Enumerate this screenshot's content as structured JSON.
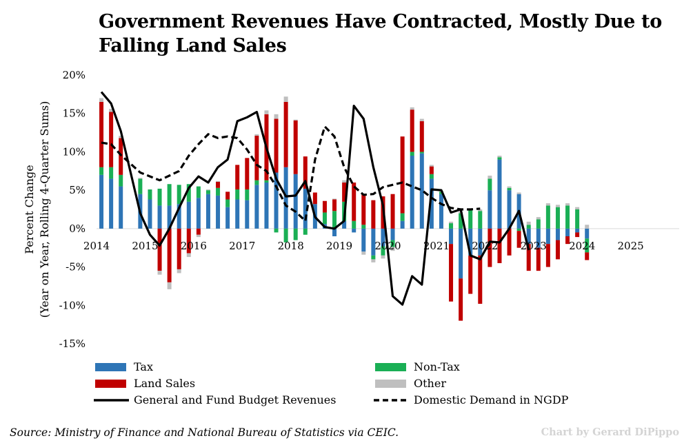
{
  "title": "Government Revenues Have Contracted, Mostly Due to Falling Land Sales",
  "source": "Source: Ministry of Finance and National Bureau of Statistics via CEIC.",
  "credit": "Chart by Gerard DiPippo",
  "colors": {
    "tax": "#2e75b6",
    "nontax": "#1aaf55",
    "land": "#c00000",
    "other": "#bfbfbf",
    "line": "#000000"
  },
  "chart_data": {
    "type": "bar",
    "stacked": true,
    "title": "Government Revenues Have Contracted, Mostly Due to Falling Land Sales",
    "ylabel_line1": "Percent Change",
    "ylabel_line2": "(Year on Year, Rolling 4-Quarter Sums)",
    "ylim": [
      -15,
      20
    ],
    "yticks": [
      -15,
      -10,
      -5,
      0,
      5,
      10,
      15,
      20
    ],
    "ytick_labels": [
      "-15%",
      "-10%",
      "-5%",
      "0%",
      "5%",
      "10%",
      "15%",
      "20%"
    ],
    "year_labels": [
      "2014",
      "2015",
      "2016",
      "2017",
      "2018",
      "2019",
      "2020",
      "2021",
      "2022",
      "2023",
      "2024",
      "2025"
    ],
    "year_start_index": [
      0,
      5,
      10,
      15,
      20,
      25,
      30,
      35,
      40,
      45,
      50,
      55
    ],
    "periods_per_year": 5,
    "n_periods": 60,
    "series": [
      {
        "name": "Tax",
        "key": "tax",
        "kind": "bar",
        "values": [
          7.0,
          6.5,
          5.5,
          4.5,
          3.8,
          3.0,
          3.0,
          3.2,
          3.5,
          4.0,
          4.5,
          4.3,
          2.8,
          3.8,
          3.7,
          5.7,
          6.0,
          7.3,
          8.0,
          7.1,
          5.2,
          3.2,
          0.6,
          -1.0,
          1.0,
          -0.5,
          -3.0,
          -3.5,
          -2.3,
          -1.5,
          1.0,
          9.5,
          9.8,
          6.5,
          4.5,
          -2.0,
          -6.5,
          -3.5,
          -3.5,
          5.0,
          9.0,
          5.0,
          4.5,
          -2.0,
          -2.5,
          -2.0,
          -1.5,
          -1.0,
          -0.5,
          -1.3
        ]
      },
      {
        "name": "Non-Tax",
        "key": "nontax",
        "kind": "bar",
        "values": [
          1.0,
          1.5,
          1.5,
          2.0,
          1.3,
          2.2,
          2.8,
          2.5,
          2.3,
          1.5,
          0.5,
          1.0,
          1.0,
          1.3,
          1.4,
          0.6,
          0.3,
          -0.5,
          -1.8,
          -1.5,
          -0.8,
          0.0,
          1.5,
          2.3,
          2.5,
          1.0,
          0.5,
          -0.5,
          -1.2,
          -0.9,
          1.0,
          0.5,
          0.2,
          0.6,
          0.3,
          0.7,
          2.0,
          2.4,
          2.3,
          1.5,
          0.3,
          0.3,
          -0.3,
          0.5,
          1.2,
          3.0,
          2.8,
          3.0,
          2.5,
          -1.8
        ]
      },
      {
        "name": "Land Sales",
        "key": "land",
        "kind": "bar",
        "values": [
          8.5,
          7.2,
          4.8,
          0.0,
          0.0,
          -5.5,
          -7.0,
          -5.3,
          -3.2,
          -0.8,
          0.0,
          0.8,
          1.0,
          3.2,
          4.1,
          5.8,
          8.6,
          7.0,
          8.5,
          7.0,
          4.2,
          1.5,
          1.5,
          1.5,
          2.5,
          5.0,
          4.0,
          3.7,
          4.2,
          4.5,
          10.0,
          5.5,
          4.0,
          1.0,
          0.0,
          -7.5,
          -5.5,
          -5.0,
          -6.3,
          -5.0,
          -4.5,
          -3.5,
          -2.2,
          -3.5,
          -3.0,
          -3.0,
          -2.5,
          -1.0,
          -0.6,
          -1.0
        ]
      },
      {
        "name": "Other",
        "key": "other",
        "kind": "bar",
        "values": [
          0.5,
          0.4,
          0.3,
          0.1,
          0.0,
          -0.5,
          -0.9,
          -0.5,
          -0.5,
          -0.3,
          0.1,
          0.1,
          0.0,
          0.0,
          0.0,
          0.2,
          0.5,
          0.6,
          0.7,
          0.1,
          0.0,
          0.0,
          0.0,
          0.1,
          0.3,
          0.0,
          -0.4,
          -0.4,
          -0.4,
          -0.5,
          0.0,
          0.3,
          0.3,
          0.2,
          0.1,
          0.2,
          0.2,
          0.2,
          0.2,
          0.4,
          0.2,
          0.2,
          0.2,
          0.4,
          0.3,
          0.3,
          0.3,
          0.3,
          0.3,
          0.5
        ]
      },
      {
        "name": "General and Fund Budget Revenues",
        "key": "general",
        "kind": "line",
        "dash": false,
        "values": [
          17.8,
          16.3,
          12.7,
          2.0,
          -0.8,
          -2.2,
          0.0,
          2.7,
          5.3,
          6.8,
          6.0,
          8.0,
          9.0,
          14.0,
          14.5,
          15.2,
          10.5,
          6.5,
          4.2,
          4.3,
          6.2,
          1.5,
          0.2,
          0.0,
          1.0,
          16.0,
          14.3,
          8.0,
          3.0,
          -8.8,
          -9.9,
          -6.2,
          -7.3,
          5.1,
          5.0,
          2.1,
          2.5,
          -3.5,
          -4.0,
          -1.7,
          -1.8,
          0.0,
          2.3,
          -2.8
        ]
      },
      {
        "name": "Domestic Demand in NGDP",
        "key": "demand",
        "kind": "line",
        "dash": true,
        "values": [
          11.2,
          11.0,
          9.6,
          7.3,
          6.8,
          6.3,
          6.9,
          7.5,
          9.5,
          11.0,
          12.3,
          11.8,
          12.0,
          11.8,
          10.3,
          8.3,
          7.5,
          5.5,
          3.0,
          2.2,
          1.0,
          9.0,
          13.3,
          12.0,
          8.0,
          5.5,
          4.4,
          4.5,
          5.4,
          5.7,
          6.0,
          5.5,
          5.0,
          4.0,
          3.2,
          2.7,
          2.5,
          2.5,
          2.6
        ]
      }
    ],
    "legend": [
      {
        "label": "Tax",
        "key": "tax"
      },
      {
        "label": "Non-Tax",
        "key": "nontax"
      },
      {
        "label": "Land Sales",
        "key": "land"
      },
      {
        "label": "Other",
        "key": "other"
      },
      {
        "label": "General and Fund Budget Revenues",
        "key": "general"
      },
      {
        "label": "Domestic Demand in NGDP",
        "key": "demand"
      }
    ],
    "bar_positions": [
      0,
      1,
      2,
      4,
      5,
      6,
      7,
      8,
      9,
      10,
      11,
      12,
      13,
      14,
      15,
      16,
      17,
      18,
      19,
      20,
      21,
      22,
      23,
      24,
      25,
      26,
      27,
      28,
      29,
      30,
      31,
      32,
      33,
      34,
      35,
      36,
      37,
      38,
      39,
      40,
      41,
      42,
      43,
      44,
      45,
      46,
      47,
      48,
      49,
      50
    ],
    "general_positions": [
      0,
      1,
      2,
      4,
      5,
      6,
      7,
      8,
      9,
      10,
      11,
      12,
      13,
      14,
      15,
      16,
      17,
      18,
      19,
      20,
      21,
      22,
      23,
      24,
      25,
      26,
      27,
      28,
      29,
      30,
      31,
      32,
      33,
      34,
      35,
      36,
      37,
      38,
      39,
      40,
      41,
      42,
      43,
      44
    ],
    "demand_positions": [
      0,
      1,
      2,
      4,
      5,
      6,
      7,
      8,
      9,
      10,
      11,
      12,
      13,
      14,
      15,
      16,
      17,
      18,
      19,
      20,
      21,
      22,
      23,
      24,
      25,
      26,
      27,
      28,
      29,
      30,
      31,
      32,
      33,
      34,
      35,
      36,
      37,
      38,
      39
    ]
  }
}
